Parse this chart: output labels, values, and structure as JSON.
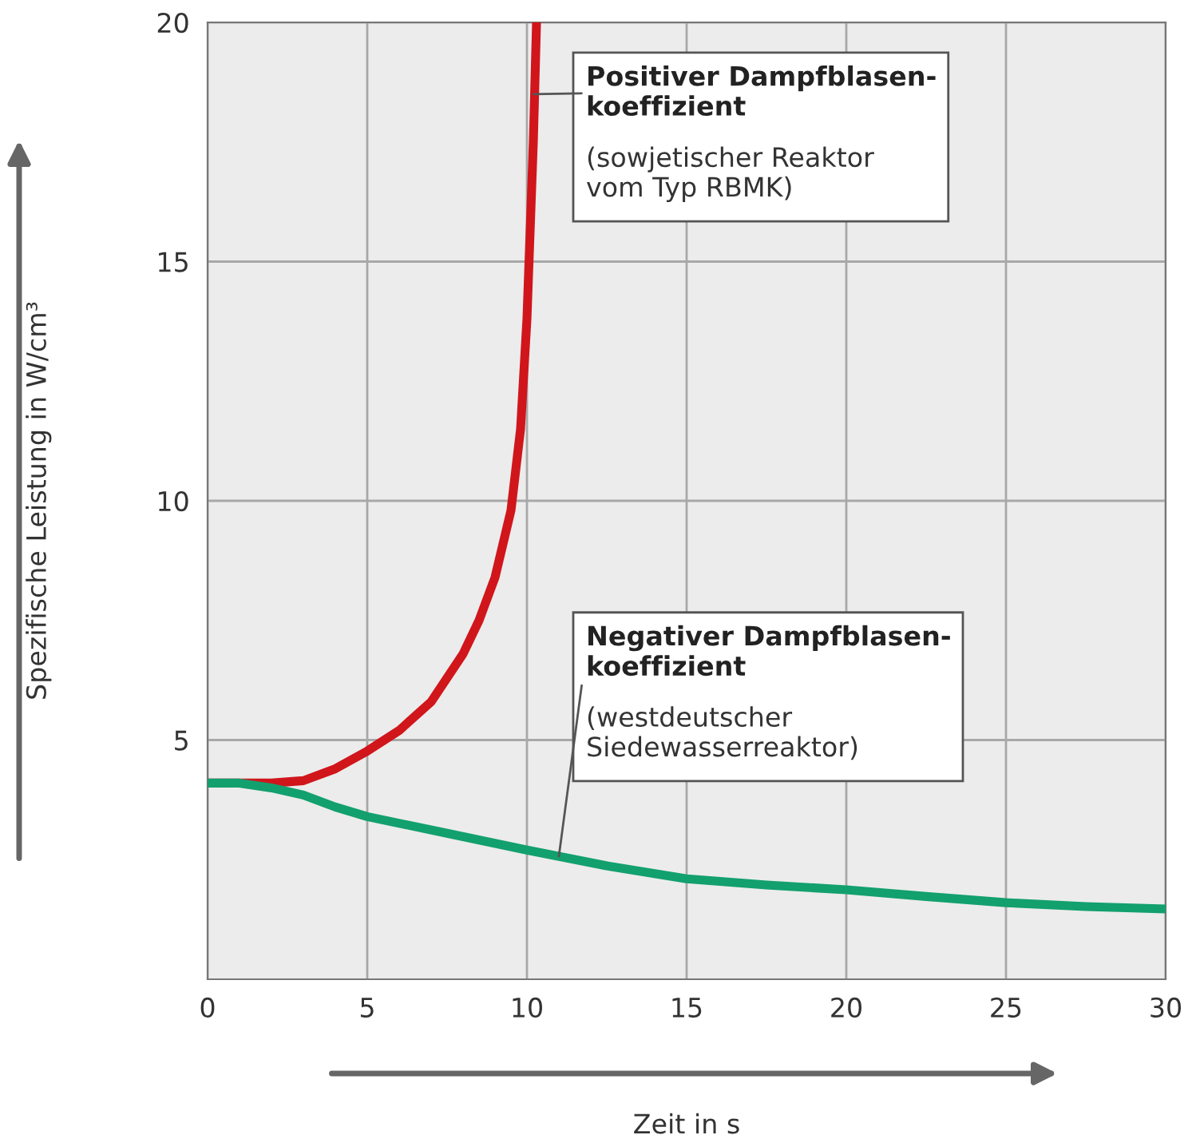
{
  "chart_data": {
    "type": "line",
    "xlabel": "Zeit in s",
    "ylabel": "Spezifische Leistung in W/cm³",
    "xlim": [
      0,
      30
    ],
    "ylim": [
      0,
      20
    ],
    "xticks": [
      0,
      5,
      10,
      15,
      20,
      25,
      30
    ],
    "yticks": [
      5,
      10,
      15,
      20
    ],
    "grid": true,
    "series": [
      {
        "color": "#d0161b",
        "x": [
          0,
          1,
          2,
          3,
          4,
          5,
          6,
          7,
          8,
          8.5,
          9,
          9.5,
          9.8,
          10,
          10.2,
          10.3
        ],
        "values": [
          4.1,
          4.1,
          4.1,
          4.15,
          4.4,
          4.77,
          5.2,
          5.8,
          6.8,
          7.5,
          8.4,
          9.8,
          11.5,
          13.8,
          17.5,
          20
        ]
      },
      {
        "color": "#12a06e",
        "x": [
          0,
          1,
          2,
          3,
          4,
          5,
          7.5,
          10,
          12.5,
          15,
          17.5,
          20,
          22.5,
          25,
          27.5,
          30
        ],
        "values": [
          4.1,
          4.1,
          4.0,
          3.85,
          3.6,
          3.4,
          3.05,
          2.7,
          2.37,
          2.1,
          1.97,
          1.87,
          1.73,
          1.6,
          1.52,
          1.47
        ]
      }
    ],
    "annotations": [
      {
        "text": "Positiver Dampfblasen-\nkoeffizient",
        "x": 10.2,
        "y": 18.5
      },
      "(sowjetischer Reaktor\nvom Typ RBMK)",
      {
        "text": "Negativer Dampfblasen-\nkoeffizient",
        "x": 11,
        "y": 2.57
      },
      "(westdeutscher\nSiedewasserreaktor)"
    ]
  }
}
